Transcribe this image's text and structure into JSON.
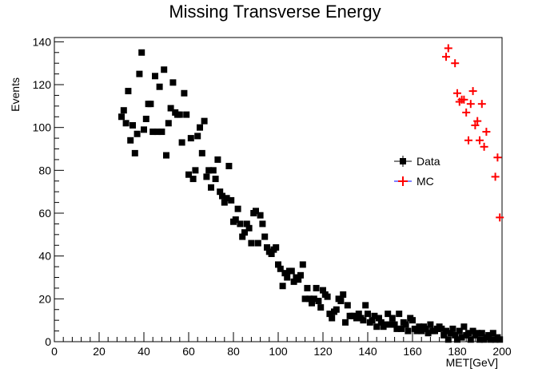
{
  "chart_data": {
    "type": "scatter",
    "title": "Missing Transverse Energy",
    "xlabel": "MET[GeV]",
    "ylabel": "Events",
    "xlim": [
      0,
      200
    ],
    "ylim": [
      0,
      142
    ],
    "x_ticks": [
      "0",
      "20",
      "40",
      "60",
      "80",
      "100",
      "120",
      "140",
      "160",
      "180",
      "200"
    ],
    "y_ticks": [
      "0",
      "20",
      "40",
      "60",
      "80",
      "100",
      "120",
      "140"
    ],
    "legend_position": "right-middle",
    "series": [
      {
        "name": "Data",
        "marker": "square",
        "color": "#000000",
        "points": [
          [
            30,
            105
          ],
          [
            31,
            108
          ],
          [
            32,
            102
          ],
          [
            33,
            117
          ],
          [
            34,
            94
          ],
          [
            35,
            101
          ],
          [
            36,
            88
          ],
          [
            37,
            97
          ],
          [
            38,
            125
          ],
          [
            39,
            135
          ],
          [
            40,
            99
          ],
          [
            41,
            104
          ],
          [
            42,
            111
          ],
          [
            43,
            111
          ],
          [
            44,
            98
          ],
          [
            45,
            124
          ],
          [
            46,
            98
          ],
          [
            47,
            119
          ],
          [
            48,
            98
          ],
          [
            49,
            127
          ],
          [
            50,
            87
          ],
          [
            51,
            102
          ],
          [
            52,
            109
          ],
          [
            53,
            121
          ],
          [
            54,
            107
          ],
          [
            55,
            106
          ],
          [
            56,
            106
          ],
          [
            57,
            93
          ],
          [
            58,
            116
          ],
          [
            59,
            106
          ],
          [
            60,
            78
          ],
          [
            61,
            95
          ],
          [
            62,
            76
          ],
          [
            63,
            80
          ],
          [
            64,
            96
          ],
          [
            65,
            100
          ],
          [
            66,
            88
          ],
          [
            67,
            103
          ],
          [
            68,
            77
          ],
          [
            69,
            80
          ],
          [
            70,
            72
          ],
          [
            71,
            80
          ],
          [
            72,
            76
          ],
          [
            73,
            85
          ],
          [
            74,
            70
          ],
          [
            75,
            68
          ],
          [
            76,
            65
          ],
          [
            77,
            67
          ],
          [
            78,
            82
          ],
          [
            79,
            66
          ],
          [
            80,
            56
          ],
          [
            81,
            57
          ],
          [
            82,
            62
          ],
          [
            83,
            55
          ],
          [
            84,
            49
          ],
          [
            85,
            51
          ],
          [
            86,
            55
          ],
          [
            87,
            53
          ],
          [
            88,
            46
          ],
          [
            89,
            60
          ],
          [
            90,
            61
          ],
          [
            91,
            46
          ],
          [
            92,
            59
          ],
          [
            93,
            55
          ],
          [
            94,
            49
          ],
          [
            95,
            44
          ],
          [
            96,
            42
          ],
          [
            97,
            41
          ],
          [
            98,
            43
          ],
          [
            99,
            44
          ],
          [
            100,
            36
          ],
          [
            101,
            34
          ],
          [
            102,
            26
          ],
          [
            103,
            32
          ],
          [
            104,
            30
          ],
          [
            105,
            33
          ],
          [
            106,
            33
          ],
          [
            107,
            28
          ],
          [
            108,
            30
          ],
          [
            109,
            29
          ],
          [
            110,
            31
          ],
          [
            111,
            36
          ],
          [
            112,
            20
          ],
          [
            113,
            25
          ],
          [
            114,
            20
          ],
          [
            115,
            18
          ],
          [
            116,
            20
          ],
          [
            117,
            25
          ],
          [
            118,
            19
          ],
          [
            119,
            16
          ],
          [
            120,
            24
          ],
          [
            121,
            22
          ],
          [
            122,
            21
          ],
          [
            123,
            13
          ],
          [
            124,
            11
          ],
          [
            125,
            14
          ],
          [
            126,
            15
          ],
          [
            127,
            20
          ],
          [
            128,
            19
          ],
          [
            129,
            22
          ],
          [
            130,
            9
          ],
          [
            131,
            17
          ],
          [
            132,
            12
          ],
          [
            133,
            12
          ],
          [
            134,
            12
          ],
          [
            135,
            11
          ],
          [
            136,
            13
          ],
          [
            137,
            11
          ],
          [
            138,
            10
          ],
          [
            139,
            17
          ],
          [
            140,
            13
          ],
          [
            141,
            9
          ],
          [
            142,
            10
          ],
          [
            143,
            12
          ],
          [
            144,
            7
          ],
          [
            145,
            11
          ],
          [
            146,
            9
          ],
          [
            147,
            7
          ],
          [
            148,
            8
          ],
          [
            149,
            13
          ],
          [
            150,
            8
          ],
          [
            151,
            11
          ],
          [
            152,
            8
          ],
          [
            153,
            6
          ],
          [
            154,
            13
          ],
          [
            155,
            6
          ],
          [
            156,
            9
          ],
          [
            157,
            8
          ],
          [
            158,
            5
          ],
          [
            159,
            11
          ],
          [
            160,
            10
          ],
          [
            161,
            6
          ],
          [
            162,
            5
          ],
          [
            163,
            7
          ],
          [
            164,
            5
          ],
          [
            165,
            7
          ],
          [
            166,
            6
          ],
          [
            167,
            4
          ],
          [
            168,
            8
          ],
          [
            169,
            5
          ],
          [
            170,
            5
          ],
          [
            171,
            6
          ],
          [
            172,
            7
          ],
          [
            173,
            6
          ],
          [
            174,
            3
          ],
          [
            175,
            5
          ],
          [
            176,
            1
          ],
          [
            177,
            4
          ],
          [
            178,
            6
          ],
          [
            179,
            3
          ],
          [
            180,
            1
          ],
          [
            181,
            5
          ],
          [
            182,
            2
          ],
          [
            183,
            7
          ],
          [
            184,
            3
          ],
          [
            185,
            4
          ],
          [
            186,
            1
          ],
          [
            187,
            5
          ],
          [
            188,
            3
          ],
          [
            189,
            4
          ],
          [
            190,
            1
          ],
          [
            191,
            4
          ],
          [
            192,
            1
          ],
          [
            193,
            2
          ],
          [
            194,
            3
          ],
          [
            195,
            1
          ],
          [
            196,
            4
          ],
          [
            197,
            1
          ],
          [
            198,
            2
          ],
          [
            199,
            1
          ]
        ]
      },
      {
        "name": "MC",
        "marker": "cross",
        "color": "#ff0000",
        "points": [
          [
            175,
            133
          ],
          [
            176,
            137
          ],
          [
            179,
            130
          ],
          [
            180,
            116
          ],
          [
            181,
            112
          ],
          [
            182,
            113
          ],
          [
            183,
            113
          ],
          [
            184,
            107
          ],
          [
            185,
            94
          ],
          [
            186,
            111
          ],
          [
            187,
            117
          ],
          [
            188,
            101
          ],
          [
            189,
            103
          ],
          [
            190,
            94
          ],
          [
            191,
            111
          ],
          [
            192,
            91
          ],
          [
            193,
            98
          ],
          [
            197,
            77
          ],
          [
            198,
            86
          ],
          [
            199,
            58
          ]
        ]
      }
    ]
  }
}
